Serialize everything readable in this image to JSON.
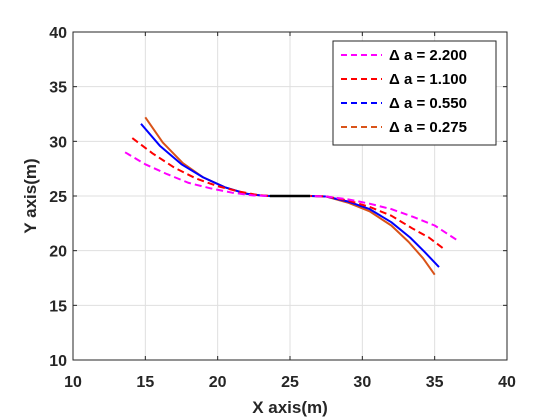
{
  "chart_data": {
    "type": "line",
    "xlabel": "X axis(m)",
    "ylabel": "Y axis(m)",
    "xlim": [
      10,
      40
    ],
    "ylim": [
      10,
      40
    ],
    "xticks": [
      "10",
      "15",
      "20",
      "25",
      "30",
      "35",
      "40"
    ],
    "yticks": [
      "10",
      "15",
      "20",
      "25",
      "30",
      "35",
      "40"
    ],
    "grid": true,
    "legend_position": "top-right",
    "straight_segment": {
      "color": "#000000",
      "x": [
        23.6,
        26.4
      ],
      "y": [
        25.0,
        25.0
      ]
    },
    "series": [
      {
        "name": "Δ a = 2.200",
        "color": "#ff00ff",
        "dash": "dashed",
        "x": [
          13.6,
          15.0,
          16.5,
          18.0,
          19.5,
          21.0,
          22.5,
          23.6,
          26.4,
          27.5,
          29.0,
          30.5,
          32.0,
          33.5,
          35.0,
          36.5
        ],
        "y": [
          29.0,
          27.9,
          27.0,
          26.2,
          25.7,
          25.3,
          25.05,
          25.0,
          25.0,
          24.95,
          24.7,
          24.3,
          23.8,
          23.1,
          22.3,
          21.0
        ]
      },
      {
        "name": "Δ a = 1.100",
        "color": "#ff0000",
        "dash": "dashed",
        "x": [
          14.1,
          15.5,
          17.0,
          18.5,
          20.0,
          21.5,
          22.7,
          23.6,
          26.4,
          27.5,
          29.0,
          30.5,
          32.0,
          33.5,
          34.6,
          35.7
        ],
        "y": [
          30.3,
          28.9,
          27.6,
          26.6,
          25.9,
          25.4,
          25.1,
          25.0,
          25.0,
          24.95,
          24.6,
          24.0,
          23.2,
          22.0,
          21.2,
          20.1
        ]
      },
      {
        "name": "Δ a = 0.550",
        "color": "#0000ff",
        "dash": "solid",
        "x": [
          14.7,
          16.0,
          17.5,
          19.0,
          20.5,
          22.0,
          23.0,
          23.6,
          26.4,
          27.5,
          29.0,
          30.5,
          32.0,
          33.3,
          34.3,
          35.3
        ],
        "y": [
          31.6,
          29.6,
          27.9,
          26.7,
          25.8,
          25.2,
          25.05,
          25.0,
          25.0,
          24.95,
          24.5,
          23.8,
          22.6,
          21.2,
          19.9,
          18.5
        ]
      },
      {
        "name": "Δ a = 0.275",
        "color": "#d95319",
        "dash": "solid",
        "x": [
          15.0,
          16.2,
          17.6,
          19.0,
          20.5,
          22.0,
          23.0,
          23.6,
          26.4,
          27.5,
          29.0,
          30.5,
          32.0,
          33.2,
          34.2,
          35.0
        ],
        "y": [
          32.2,
          29.9,
          28.0,
          26.7,
          25.8,
          25.2,
          25.05,
          25.0,
          25.0,
          24.95,
          24.4,
          23.6,
          22.3,
          20.8,
          19.3,
          17.8
        ]
      }
    ]
  }
}
